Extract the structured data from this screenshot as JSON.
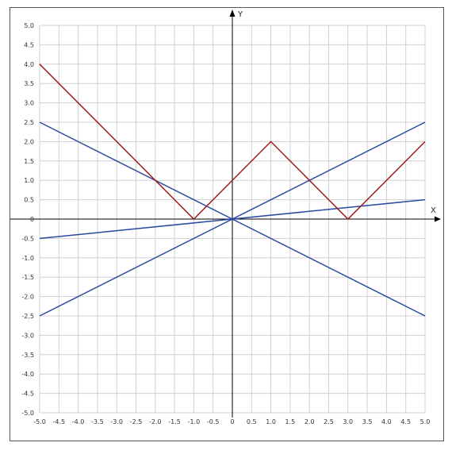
{
  "chart_data": {
    "type": "line",
    "title": "",
    "xlabel": "X",
    "ylabel": "Y",
    "xlim": [
      -5,
      5
    ],
    "ylim": [
      -5,
      5
    ],
    "grid": true,
    "x_ticks": [
      "-5.0",
      "-4.5",
      "-4.0",
      "-3.5",
      "-3.0",
      "-2.5",
      "-2.0",
      "-1.5",
      "-1.0",
      "-0.5",
      "0",
      "0.5",
      "1.0",
      "1.5",
      "2.0",
      "2.5",
      "3.0",
      "3.5",
      "4.0",
      "4.5",
      "5.0"
    ],
    "y_ticks": [
      "5.0",
      "4.5",
      "4.0",
      "3.5",
      "3.0",
      "2.5",
      "2.0",
      "1.5",
      "1.0",
      "0.5",
      "0",
      "-0.5",
      "-1.0",
      "-1.5",
      "-2.0",
      "-2.5",
      "-3.0",
      "-3.5",
      "-4.0",
      "-4.5",
      "-5.0"
    ],
    "series": [
      {
        "color": "#2a4aa0",
        "x": [
          -5,
          5
        ],
        "y": [
          2.5,
          -2.5
        ]
      },
      {
        "color": "#2a4aa0",
        "x": [
          -5,
          5
        ],
        "y": [
          -2.5,
          2.5
        ]
      },
      {
        "color": "#2a4aa0",
        "x": [
          -5,
          5
        ],
        "y": [
          -0.5,
          0.5
        ]
      },
      {
        "color": "#a01c1c",
        "x": [
          -5,
          -1,
          1,
          3,
          5
        ],
        "y": [
          4,
          0,
          2,
          0,
          2
        ]
      }
    ],
    "colors": {
      "grid": "#d0d0d0",
      "axis": "#000000"
    }
  }
}
